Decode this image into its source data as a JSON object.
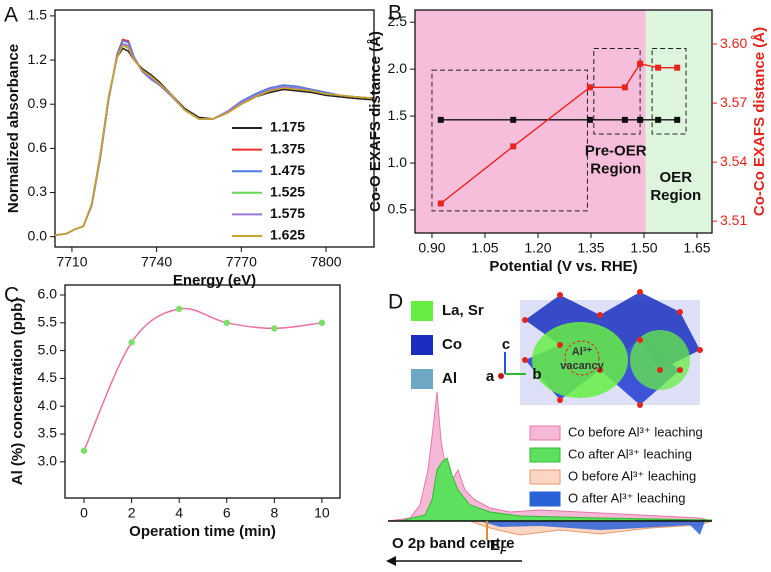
{
  "panel_labels": [
    "A",
    "B",
    "C",
    "D"
  ],
  "chart_data": [
    {
      "type": "line",
      "x_label": "Energy (eV)",
      "y_label": "Normalized absorbance",
      "xlim": [
        7704,
        7817
      ],
      "xticks": [
        7710,
        7740,
        7770,
        7800
      ],
      "ylim": [
        -0.07,
        1.54
      ],
      "yticks": [
        {
          "value": 0,
          "label": "0.0"
        },
        0.3,
        0.6,
        0.9,
        1.2,
        1.5
      ],
      "x": [
        7704,
        7708,
        7711,
        7714,
        7717,
        7720,
        7723,
        7726,
        7728,
        7730,
        7732,
        7735,
        7738,
        7741,
        7745,
        7750,
        7755,
        7760,
        7765,
        7770,
        7775,
        7780,
        7785,
        7790,
        7795,
        7800,
        7805,
        7810,
        7817
      ],
      "series": [
        {
          "name": "1.175",
          "color": "#222222",
          "values": [
            0.01,
            0.02,
            0.05,
            0.07,
            0.22,
            0.55,
            0.95,
            1.22,
            1.28,
            1.26,
            1.2,
            1.14,
            1.1,
            1.05,
            0.97,
            0.87,
            0.81,
            0.8,
            0.84,
            0.9,
            0.95,
            0.98,
            1.0,
            0.99,
            0.98,
            0.96,
            0.95,
            0.94,
            0.93
          ]
        },
        {
          "name": "1.375",
          "color": "#e8332a",
          "values": [
            0.01,
            0.02,
            0.05,
            0.07,
            0.21,
            0.53,
            0.93,
            1.24,
            1.34,
            1.33,
            1.22,
            1.12,
            1.07,
            1.03,
            0.96,
            0.86,
            0.8,
            0.8,
            0.85,
            0.92,
            0.97,
            1.01,
            1.03,
            1.02,
            1.0,
            0.98,
            0.96,
            0.95,
            0.94
          ]
        },
        {
          "name": "1.475",
          "color": "#4f7fe6",
          "values": [
            0.01,
            0.02,
            0.05,
            0.07,
            0.21,
            0.53,
            0.93,
            1.23,
            1.33,
            1.32,
            1.22,
            1.12,
            1.07,
            1.03,
            0.96,
            0.86,
            0.8,
            0.8,
            0.85,
            0.92,
            0.97,
            1.01,
            1.03,
            1.02,
            1.0,
            0.98,
            0.96,
            0.95,
            0.94
          ]
        },
        {
          "name": "1.525",
          "color": "#62d94e",
          "values": [
            0.01,
            0.02,
            0.05,
            0.07,
            0.21,
            0.54,
            0.94,
            1.22,
            1.3,
            1.29,
            1.21,
            1.12,
            1.08,
            1.03,
            0.96,
            0.86,
            0.8,
            0.8,
            0.85,
            0.91,
            0.96,
            1.0,
            1.02,
            1.01,
            0.99,
            0.97,
            0.96,
            0.95,
            0.94
          ]
        },
        {
          "name": "1.575",
          "color": "#9a74e0",
          "values": [
            0.01,
            0.02,
            0.05,
            0.07,
            0.21,
            0.54,
            0.94,
            1.22,
            1.31,
            1.3,
            1.21,
            1.12,
            1.08,
            1.03,
            0.96,
            0.86,
            0.8,
            0.8,
            0.85,
            0.91,
            0.96,
            1.0,
            1.02,
            1.01,
            0.99,
            0.97,
            0.96,
            0.95,
            0.94
          ]
        },
        {
          "name": "1.625",
          "color": "#c9a227",
          "values": [
            0.01,
            0.02,
            0.05,
            0.07,
            0.22,
            0.55,
            0.95,
            1.22,
            1.3,
            1.28,
            1.2,
            1.13,
            1.09,
            1.04,
            0.97,
            0.86,
            0.8,
            0.8,
            0.84,
            0.9,
            0.95,
            0.99,
            1.01,
            1.0,
            0.99,
            0.97,
            0.96,
            0.95,
            0.94
          ]
        }
      ]
    },
    {
      "type": "dual",
      "x_label": "Potential (V vs. RHE)",
      "y_label": "Co-O EXAFS distance (Å)",
      "y2_label": "Co-Co EXAFS distance (Å)",
      "xlim": [
        0.852,
        1.6925
      ],
      "xticks": [
        {
          "value": 0.9,
          "label": "0.90"
        },
        1.05,
        {
          "value": 1.2,
          "label": "1.20"
        },
        1.35,
        {
          "value": 1.5,
          "label": "1.50"
        },
        1.65
      ],
      "ylim": [
        0.255,
        2.63
      ],
      "yticks": [
        0.5,
        {
          "value": 1,
          "label": "1.0"
        },
        1.5,
        {
          "value": 2,
          "label": "2.0"
        },
        2.5
      ],
      "y2lim": [
        3.504,
        3.6173
      ],
      "y2ticks": [
        3.51,
        3.54,
        3.57,
        {
          "value": 3.6,
          "label": "3.60"
        }
      ],
      "backgrounds": [
        {
          "x": [
            0.852,
            1.505
          ],
          "color": "#f7bedb"
        },
        {
          "x": [
            1.505,
            1.6925
          ],
          "color": "#dcf5dc"
        }
      ],
      "boxes": [
        {
          "x": [
            0.9,
            1.34
          ],
          "y": [
            0.49,
            1.99
          ]
        },
        {
          "x": [
            1.358,
            1.489
          ],
          "y": [
            1.31,
            2.22
          ]
        },
        {
          "x": [
            1.523,
            1.619
          ],
          "y": [
            1.31,
            2.22
          ]
        }
      ],
      "annotations": [
        {
          "lines": [
            "Pre-OER",
            "Region"
          ],
          "x": 1.42,
          "y": 1.12
        },
        {
          "lines": [
            "OER",
            "Region"
          ],
          "x": 1.59,
          "y": 0.84
        }
      ],
      "x": [
        0.925,
        1.13,
        1.347,
        1.446,
        1.489,
        1.54,
        1.594
      ],
      "series": [
        {
          "name": "Co-O",
          "color": "#111111",
          "values": [
            1.46,
            1.46,
            1.46,
            1.46,
            1.46,
            1.46,
            1.46
          ]
        },
        {
          "name": "Co-Co",
          "color": "#e8231b",
          "axis": "y2",
          "values": [
            3.519,
            3.548,
            3.578,
            3.578,
            3.59,
            3.588,
            3.588
          ]
        }
      ]
    },
    {
      "type": "smooth",
      "x_label": "Operation time (min)",
      "y_label": "Al (%) concentration (ppb)",
      "xlim": [
        -0.8,
        10.76
      ],
      "xticks": [
        0,
        2,
        4,
        6,
        8,
        10
      ],
      "ylim": [
        2.35,
        6.18
      ],
      "yticks": [
        {
          "value": 3,
          "label": "3.0"
        },
        3.5,
        {
          "value": 4,
          "label": "4.0"
        },
        4.5,
        {
          "value": 5,
          "label": "5.0"
        },
        5.5,
        {
          "value": 6,
          "label": "6.0"
        }
      ],
      "x": [
        0,
        2,
        4,
        6,
        8,
        10
      ],
      "series": [
        {
          "name": "Al",
          "color": "#e8749a",
          "marker_color": "#7be06a",
          "values": [
            3.2,
            5.15,
            5.75,
            5.5,
            5.4,
            5.5
          ]
        }
      ]
    },
    {
      "type": "dos",
      "series": [
        {
          "name": "Co before Al³⁺ leaching",
          "color": "#f6b8d6"
        },
        {
          "name": "Co after Al³⁺ leaching",
          "color": "#5de05d"
        },
        {
          "name": "O before Al³⁺ leaching",
          "color": "#fbd6c4"
        },
        {
          "name": "O after Al³⁺ leaching",
          "color": "#2a62d8"
        }
      ],
      "structure_legend": [
        {
          "name": "La, Sr",
          "color": "#66ee44"
        },
        {
          "name": "Co",
          "color": "#1a2fc0"
        },
        {
          "name": "Al",
          "color": "#6fa8c4"
        }
      ],
      "vacancy_label": [
        "Al³⁺",
        "vacancy"
      ],
      "axis_names": [
        "a",
        "b",
        "c"
      ],
      "band_centre": "O 2p band centre",
      "fermi": {
        "main": "E",
        "sub": "F"
      }
    }
  ]
}
